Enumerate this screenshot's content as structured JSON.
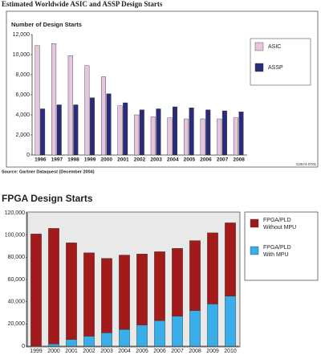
{
  "chart_data": [
    {
      "type": "bar",
      "title": "Estimated Worldwide ASIC and ASSP Design Starts",
      "y_label": "Number of Design Starts",
      "source": "Source: Gartner Dataquest (December 2004)",
      "note": "G2574-0701",
      "categories": [
        "1996",
        "1997",
        "1998",
        "1999",
        "2000",
        "2001",
        "2002",
        "2003",
        "2004",
        "2005",
        "2006",
        "2007",
        "2008"
      ],
      "series": [
        {
          "name": "ASIC",
          "color": "#e6c6df",
          "values": [
            10900,
            11100,
            9900,
            8900,
            7800,
            4900,
            4000,
            3800,
            3700,
            3600,
            3600,
            3600,
            3700
          ]
        },
        {
          "name": "ASSP",
          "color": "#2b2b7c",
          "values": [
            4600,
            5000,
            5000,
            5700,
            6100,
            5200,
            4500,
            4600,
            4800,
            4700,
            4500,
            4400,
            4300
          ]
        }
      ],
      "ylim": [
        0,
        12000
      ],
      "yticks": [
        0,
        {
          "value": 2000,
          "label": "2,000"
        },
        {
          "value": 4000,
          "label": "4,000"
        },
        {
          "value": 6000,
          "label": "6,000"
        },
        {
          "value": 8000,
          "label": "8,000"
        },
        {
          "value": 10000,
          "label": "10,000"
        },
        {
          "value": 12000,
          "label": "12,000"
        }
      ],
      "grid": false,
      "legend": "right"
    },
    {
      "type": "stacked_bar",
      "title": "FPGA Design Starts",
      "categories": [
        "1999",
        "2000",
        "2001",
        "2002",
        "2003",
        "2004",
        "2005",
        "2006",
        "2007",
        "2008",
        "2009",
        "2010"
      ],
      "series": [
        {
          "name": "FPGA/PLD With MPU",
          "color": "#3aaee8",
          "values": [
            0,
            2000,
            6000,
            9000,
            12000,
            15000,
            19000,
            23000,
            27000,
            32000,
            38000,
            45000
          ]
        },
        {
          "name": "FPGA/PLD Without MPU",
          "color": "#a31a1a",
          "values": [
            101000,
            104000,
            87000,
            75000,
            67000,
            67000,
            64000,
            62000,
            61000,
            63000,
            64000,
            66000
          ]
        }
      ],
      "ylim": [
        0,
        120000
      ],
      "yticks": [
        0,
        {
          "value": 20000,
          "label": "20,000"
        },
        {
          "value": 40000,
          "label": "40,000"
        },
        {
          "value": 60000,
          "label": "60,000"
        },
        {
          "value": 80000,
          "label": "80,000"
        },
        {
          "value": 100000,
          "label": "100,000"
        },
        {
          "value": 120000,
          "label": "120,000"
        }
      ],
      "grid": false,
      "legend": "right"
    }
  ]
}
